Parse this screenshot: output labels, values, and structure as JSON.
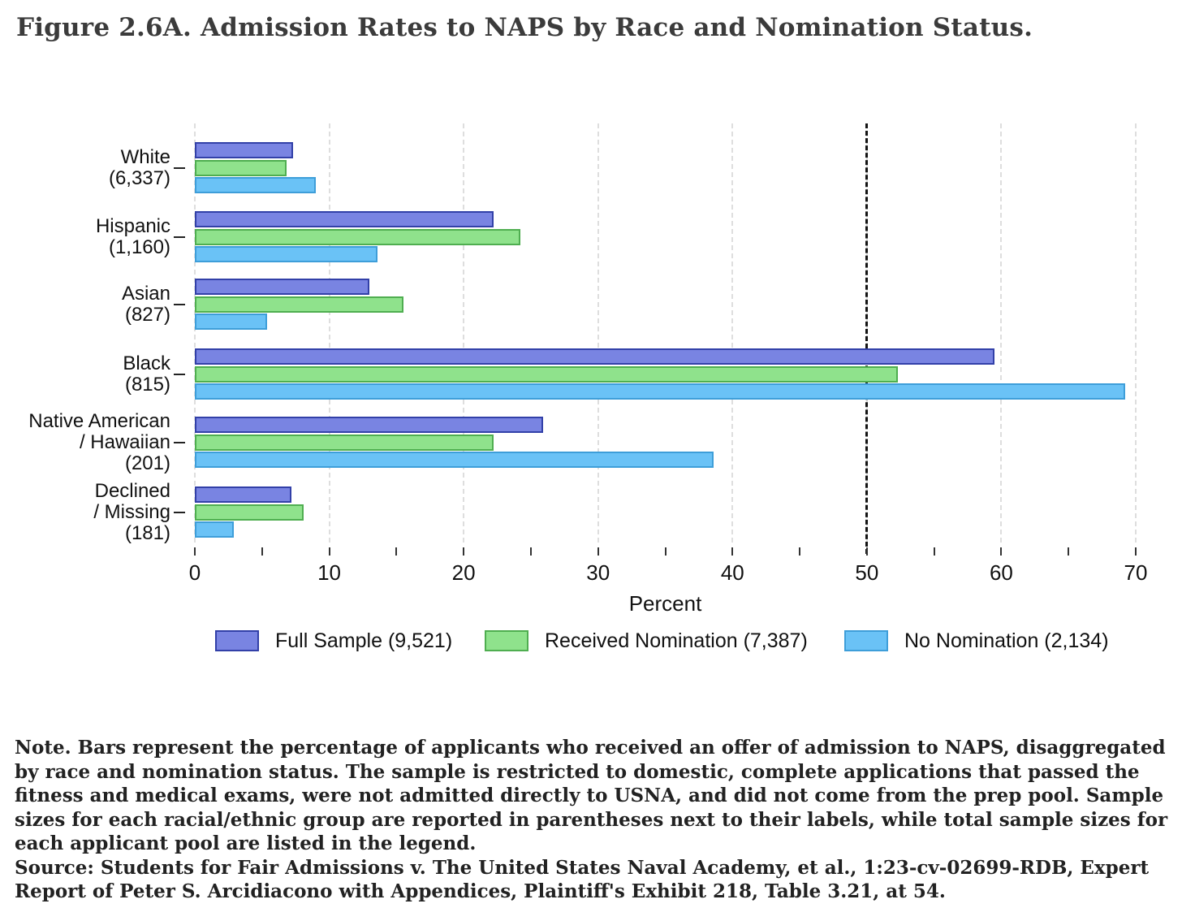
{
  "title": "Figure 2.6A. Admission Rates to NAPS by Race and Nomination Status.",
  "chart_data": {
    "type": "bar",
    "orientation": "horizontal",
    "title": "Figure 2.6A. Admission Rates to NAPS by Race and Nomination Status.",
    "xlabel": "Percent",
    "xlim": [
      0,
      70
    ],
    "xticks_major": [
      0,
      10,
      20,
      30,
      40,
      50,
      60,
      70
    ],
    "xticks_minor": [
      5,
      15,
      25,
      35,
      45,
      55,
      65
    ],
    "grid": "vertical dashed light-gray lines at major ticks",
    "reference_line": {
      "value": 50,
      "style": "dashed",
      "color": "#141414"
    },
    "legend_position": "bottom",
    "categories": [
      {
        "label_lines": [
          "White",
          "(6,337)"
        ]
      },
      {
        "label_lines": [
          "Hispanic",
          "(1,160)"
        ]
      },
      {
        "label_lines": [
          "Asian",
          "(827)"
        ]
      },
      {
        "label_lines": [
          "Black",
          "(815)"
        ]
      },
      {
        "label_lines": [
          "Native American",
          "/ Hawaiian",
          "(201)"
        ]
      },
      {
        "label_lines": [
          "Declined",
          "/ Missing",
          "(181)"
        ]
      }
    ],
    "series": [
      {
        "name": "Full Sample (9,521)",
        "fill": "#7984E2",
        "border": "#3240A8",
        "values": [
          7.3,
          22.2,
          13.0,
          59.5,
          25.9,
          7.2
        ]
      },
      {
        "name": "Received Nomination (7,387)",
        "fill": "#8FE28C",
        "border": "#4FAE50",
        "values": [
          6.8,
          24.2,
          15.5,
          52.3,
          22.2,
          8.1
        ]
      },
      {
        "name": "No Nomination (2,134)",
        "fill": "#6AC2F6",
        "border": "#3E9ED9",
        "values": [
          9.0,
          13.6,
          5.4,
          69.2,
          38.6,
          2.9
        ]
      }
    ]
  },
  "colors": {
    "grid": "#dedede",
    "reference_line": "#141414",
    "tick": "#333333",
    "text": "#111111",
    "title": "#3b3b3b"
  },
  "notes": {
    "note": "Note. Bars represent the percentage of applicants who received an offer of admission to NAPS, disaggregated by race and nomination status. The sample is restricted to domestic, complete applications that passed the fitness and medical exams, were not admitted directly to USNA, and did not come from the prep pool. Sample sizes for each racial/ethnic group are reported in parentheses next to their labels, while total sample sizes for each applicant pool are listed in the legend.",
    "source": "Source: Students for Fair Admissions v. The United States Naval Academy, et al., 1:23-cv-02699-RDB, Expert Report of Peter S. Arcidiacono with Appendices, Plaintiff's Exhibit 218, Table 3.21, at 54."
  }
}
